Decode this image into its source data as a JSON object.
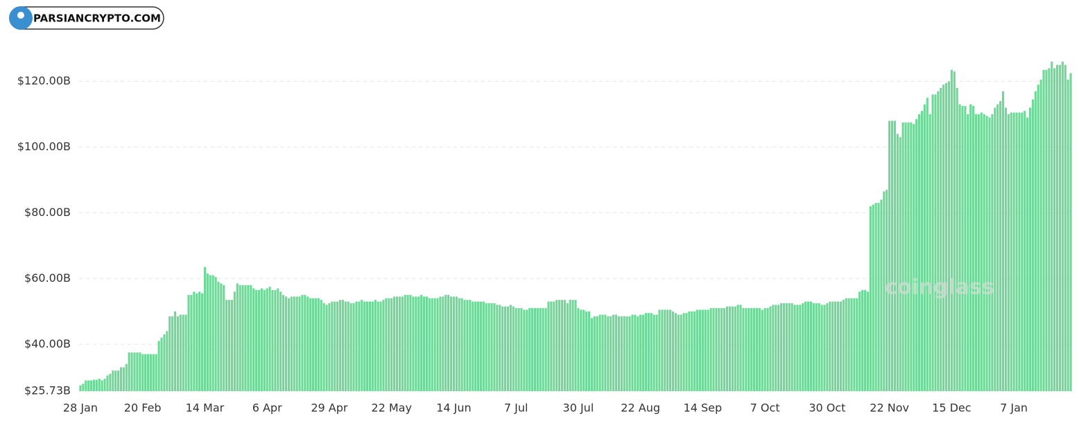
{
  "chart_data": {
    "type": "bar",
    "badge": "PARSIANCRYPTO.COM",
    "watermark": "coinglass",
    "color": "#6ed997",
    "grid": true,
    "ylim": [
      25.73,
      130
    ],
    "yticks": [
      {
        "value": 25.73,
        "label": "$25.73B"
      },
      {
        "value": 40,
        "label": "$40.00B"
      },
      {
        "value": 60,
        "label": "$60.00B"
      },
      {
        "value": 80,
        "label": "$80.00B"
      },
      {
        "value": 100,
        "label": "$100.00B"
      },
      {
        "value": 120,
        "label": "$120.00B"
      }
    ],
    "categories": [
      "28 Jan",
      null,
      null,
      null,
      null,
      null,
      null,
      null,
      null,
      null,
      null,
      null,
      null,
      null,
      null,
      null,
      null,
      null,
      null,
      null,
      null,
      null,
      null,
      "20 Feb",
      null,
      null,
      null,
      null,
      null,
      null,
      null,
      null,
      null,
      null,
      null,
      null,
      null,
      null,
      null,
      null,
      null,
      null,
      null,
      null,
      null,
      null,
      "14 Mar",
      null,
      null,
      null,
      null,
      null,
      null,
      null,
      null,
      null,
      null,
      null,
      null,
      null,
      null,
      null,
      null,
      null,
      null,
      null,
      null,
      null,
      null,
      "6 Apr",
      null,
      null,
      null,
      null,
      null,
      null,
      null,
      null,
      null,
      null,
      null,
      null,
      null,
      null,
      null,
      null,
      null,
      null,
      null,
      null,
      null,
      null,
      "29 Apr",
      null,
      null,
      null,
      null,
      null,
      null,
      null,
      null,
      null,
      null,
      null,
      null,
      null,
      null,
      null,
      null,
      null,
      null,
      null,
      null,
      null,
      null,
      "22 May",
      null,
      null,
      null,
      null,
      null,
      null,
      null,
      null,
      null,
      null,
      null,
      null,
      null,
      null,
      null,
      null,
      null,
      null,
      null,
      null,
      null,
      null,
      "14 Jun",
      null,
      null,
      null,
      null,
      null,
      null,
      null,
      null,
      null,
      null,
      null,
      null,
      null,
      null,
      null,
      null,
      null,
      null,
      null,
      null,
      null,
      null,
      "7 Jul",
      null,
      null,
      null,
      null,
      null,
      null,
      null,
      null,
      null,
      null,
      null,
      null,
      null,
      null,
      null,
      null,
      null,
      null,
      null,
      null,
      null,
      null,
      "30 Jul",
      null,
      null,
      null,
      null,
      null,
      null,
      null,
      null,
      null,
      null,
      null,
      null,
      null,
      null,
      null,
      null,
      null,
      null,
      null,
      null,
      null,
      null,
      "22 Aug",
      null,
      null,
      null,
      null,
      null,
      null,
      null,
      null,
      null,
      null,
      null,
      null,
      null,
      null,
      null,
      null,
      null,
      null,
      null,
      null,
      null,
      null,
      "14 Sep",
      null,
      null,
      null,
      null,
      null,
      null,
      null,
      null,
      null,
      null,
      null,
      null,
      null,
      null,
      null,
      null,
      null,
      null,
      null,
      null,
      null,
      null,
      "7 Oct",
      null,
      null,
      null,
      null,
      null,
      null,
      null,
      null,
      null,
      null,
      null,
      null,
      null,
      null,
      null,
      null,
      null,
      null,
      null,
      null,
      null,
      null,
      "30 Oct",
      null,
      null,
      null,
      null,
      null,
      null,
      null,
      null,
      null,
      null,
      null,
      null,
      null,
      null,
      null,
      null,
      null,
      null,
      null,
      null,
      null,
      null,
      "22 Nov",
      null,
      null,
      null,
      null,
      null,
      null,
      null,
      null,
      null,
      null,
      null,
      null,
      null,
      null,
      null,
      null,
      null,
      null,
      null,
      null,
      null,
      null,
      "15 Dec",
      null,
      null,
      null,
      null,
      null,
      null,
      null,
      null,
      null,
      null,
      null,
      null,
      null,
      null,
      null,
      null,
      null,
      null,
      null,
      null,
      null,
      null,
      "7 Jan",
      null,
      null,
      null,
      null,
      null,
      null,
      null,
      null,
      null,
      null,
      null,
      null,
      null,
      null,
      null,
      null,
      null,
      null,
      null,
      null,
      null
    ],
    "values": [
      27.5,
      28,
      29,
      29,
      29,
      29.2,
      29.2,
      29.5,
      29,
      29.5,
      30.5,
      31,
      32,
      32,
      32,
      33,
      33,
      34,
      37.5,
      37.5,
      37.5,
      37.5,
      37.5,
      37,
      37,
      37,
      37,
      37,
      37,
      41,
      42,
      43,
      44,
      48.5,
      48.5,
      50,
      48.5,
      49,
      49,
      49,
      55,
      55,
      56,
      55.5,
      56,
      55.5,
      63.5,
      61.5,
      61,
      61,
      60.5,
      59,
      58.5,
      58,
      53.5,
      53.5,
      53.5,
      56,
      58.5,
      58,
      58,
      58,
      58,
      58,
      57,
      56.5,
      56.5,
      57,
      56.5,
      57,
      57.5,
      56.5,
      56.5,
      57,
      56,
      55,
      54.5,
      54,
      54.5,
      54.5,
      54.5,
      54.5,
      55,
      55,
      54.5,
      54,
      54,
      54,
      54,
      53.5,
      52.5,
      52,
      52.5,
      53,
      53,
      53,
      53.5,
      53.5,
      53,
      53,
      52.5,
      52.5,
      53,
      53,
      53.5,
      53,
      53,
      53,
      53,
      53.5,
      53,
      53,
      53.5,
      54,
      54,
      54,
      54.5,
      54.5,
      54.5,
      54.5,
      55,
      55,
      55,
      54.5,
      54.5,
      54.5,
      55,
      54.5,
      54.5,
      54,
      54,
      54,
      54,
      54.5,
      54.5,
      55,
      55,
      54.5,
      54.5,
      54.5,
      54,
      54,
      53.5,
      53.5,
      53.5,
      53,
      53,
      53,
      53,
      53,
      52.5,
      52.5,
      52.5,
      52.5,
      52,
      52,
      51.5,
      51.5,
      51.5,
      52,
      51.5,
      51,
      51,
      51,
      50.5,
      50.5,
      51,
      51,
      51,
      51,
      51,
      51,
      51,
      53,
      53,
      53,
      53.5,
      53.5,
      53.5,
      53.5,
      52.5,
      53.5,
      53.5,
      53.5,
      51,
      50.5,
      50.5,
      50,
      50,
      48,
      48.5,
      48.5,
      49,
      49,
      49,
      48.5,
      48.5,
      49,
      49,
      48.5,
      48.5,
      48.5,
      48.5,
      48.5,
      49,
      49,
      48.5,
      49,
      49,
      49.5,
      49.5,
      49.5,
      49,
      49,
      50.5,
      50.5,
      50.5,
      50.5,
      50.5,
      50,
      49.5,
      49,
      49,
      49.5,
      49.5,
      50,
      50,
      50,
      50.5,
      50.5,
      50.5,
      50.5,
      50.5,
      51,
      51,
      51,
      51,
      51,
      51,
      51.5,
      51.5,
      51.5,
      51.5,
      52,
      52,
      51,
      51,
      51,
      51,
      51,
      51,
      51,
      50.5,
      51,
      51,
      51.5,
      52,
      52,
      52,
      52.5,
      52.5,
      52.5,
      52.5,
      52.5,
      52,
      52,
      52,
      52.5,
      53,
      53,
      53,
      52.5,
      52.5,
      52.5,
      52,
      52,
      52.5,
      53,
      53,
      53,
      53,
      53,
      53.5,
      54,
      54,
      54,
      54,
      54,
      56,
      56.5,
      56.5,
      56,
      82,
      82.5,
      83,
      83,
      84,
      86.5,
      87,
      108,
      108,
      108,
      104,
      103,
      107.5,
      107.5,
      107.5,
      107.5,
      107,
      108.5,
      110,
      111,
      113,
      115,
      110,
      116,
      116,
      117,
      118,
      119,
      119.5,
      120,
      123.5,
      123,
      118,
      113,
      112.5,
      112.5,
      110,
      113,
      112.5,
      110,
      110,
      110.5,
      110,
      109.5,
      109,
      110,
      112,
      113,
      114,
      117,
      112,
      110,
      110.5,
      110.5,
      110.5,
      110.5,
      110.5,
      111,
      109,
      112,
      114.5,
      117,
      119,
      120.5,
      123.5,
      123.5,
      124,
      126,
      124,
      125,
      125,
      126,
      125,
      120.5,
      122.5
    ]
  }
}
